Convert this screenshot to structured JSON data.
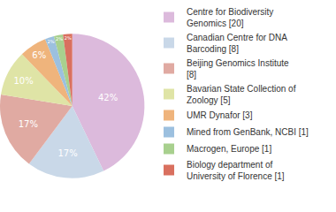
{
  "chart_data": {
    "type": "pie",
    "categories": [
      "Centre for Biodiversity Genomics [20]",
      "Canadian Centre for DNA Barcoding [8]",
      "Beijing Genomics Institute [8]",
      "Bavarian State Collection of Zoology [5]",
      "UMR Dynafor [3]",
      "Mined from GenBank, NCBI [1]",
      "Macrogen, Europe [1]",
      "Biology department of University of Florence [1]"
    ],
    "values": [
      42,
      17,
      17,
      10,
      6,
      2,
      2,
      2
    ],
    "value_labels": [
      "42%",
      "17%",
      "17%",
      "10%",
      "6%",
      "2%",
      "2%",
      "2%"
    ],
    "colors": [
      "#dcbadc",
      "#c9d8e8",
      "#e0aaa2",
      "#dfe4a6",
      "#efb47c",
      "#9cc0df",
      "#a8d08e",
      "#d9705f"
    ],
    "data_labels": true,
    "legend": "right"
  }
}
